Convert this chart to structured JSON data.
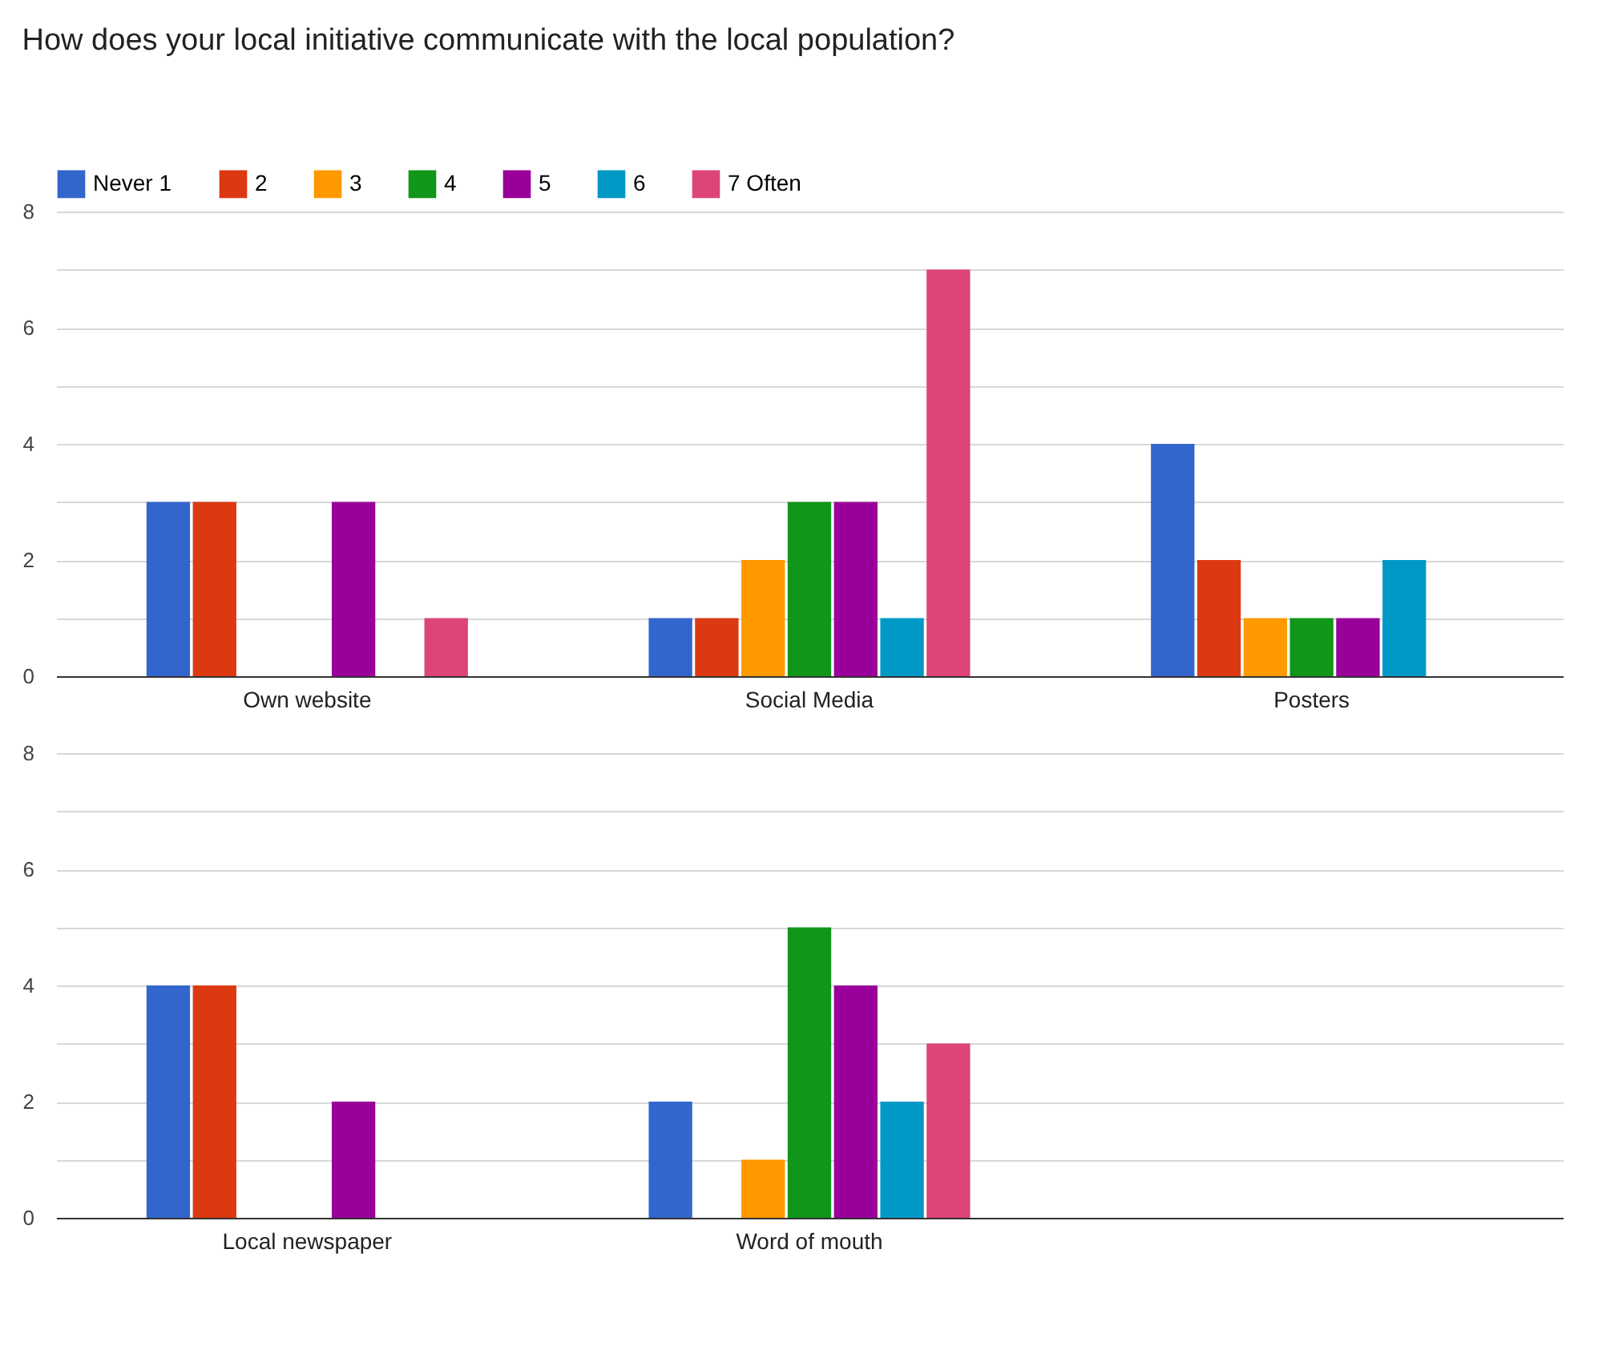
{
  "chart_data": [
    {
      "type": "bar",
      "title": "How does your local initiative communicate with the local population?",
      "categories": [
        "Own website",
        "Social Media",
        "Posters"
      ],
      "series": [
        {
          "name": "Never 1",
          "color": "#3366cc",
          "values": [
            3,
            1,
            4
          ]
        },
        {
          "name": "2",
          "color": "#dc3912",
          "values": [
            3,
            1,
            2
          ]
        },
        {
          "name": "3",
          "color": "#ff9900",
          "values": [
            0,
            2,
            1
          ]
        },
        {
          "name": "4",
          "color": "#109618",
          "values": [
            0,
            3,
            1
          ]
        },
        {
          "name": "5",
          "color": "#990099",
          "values": [
            3,
            3,
            1
          ]
        },
        {
          "name": "6",
          "color": "#0099c6",
          "values": [
            0,
            1,
            2
          ]
        },
        {
          "name": "7 Often",
          "color": "#dd4477",
          "values": [
            1,
            7,
            0
          ]
        }
      ],
      "ylim": [
        0,
        8
      ],
      "yticks": [
        0,
        {
          "value": 1,
          "label": null
        },
        2,
        {
          "value": 3,
          "label": null
        },
        4,
        {
          "value": 5,
          "label": null
        },
        6,
        {
          "value": 7,
          "label": null
        },
        8
      ],
      "grid": true,
      "legend": "top"
    },
    {
      "type": "bar",
      "categories": [
        "Local newspaper",
        "Word of mouth",
        null
      ],
      "series": [
        {
          "color": "#3366cc",
          "values": [
            4,
            2,
            null
          ]
        },
        {
          "color": "#dc3912",
          "values": [
            4,
            0,
            null
          ]
        },
        {
          "color": "#ff9900",
          "values": [
            0,
            1,
            null
          ]
        },
        {
          "color": "#109618",
          "values": [
            0,
            5,
            null
          ]
        },
        {
          "color": "#990099",
          "values": [
            2,
            4,
            null
          ]
        },
        {
          "color": "#0099c6",
          "values": [
            0,
            2,
            null
          ]
        },
        {
          "color": "#dd4477",
          "values": [
            0,
            3,
            null
          ]
        }
      ],
      "ylim": [
        0,
        8
      ],
      "yticks": [
        0,
        {
          "value": 1,
          "label": null
        },
        2,
        {
          "value": 3,
          "label": null
        },
        4,
        {
          "value": 5,
          "label": null
        },
        6,
        {
          "value": 7,
          "label": null
        },
        8
      ],
      "grid": true
    }
  ]
}
